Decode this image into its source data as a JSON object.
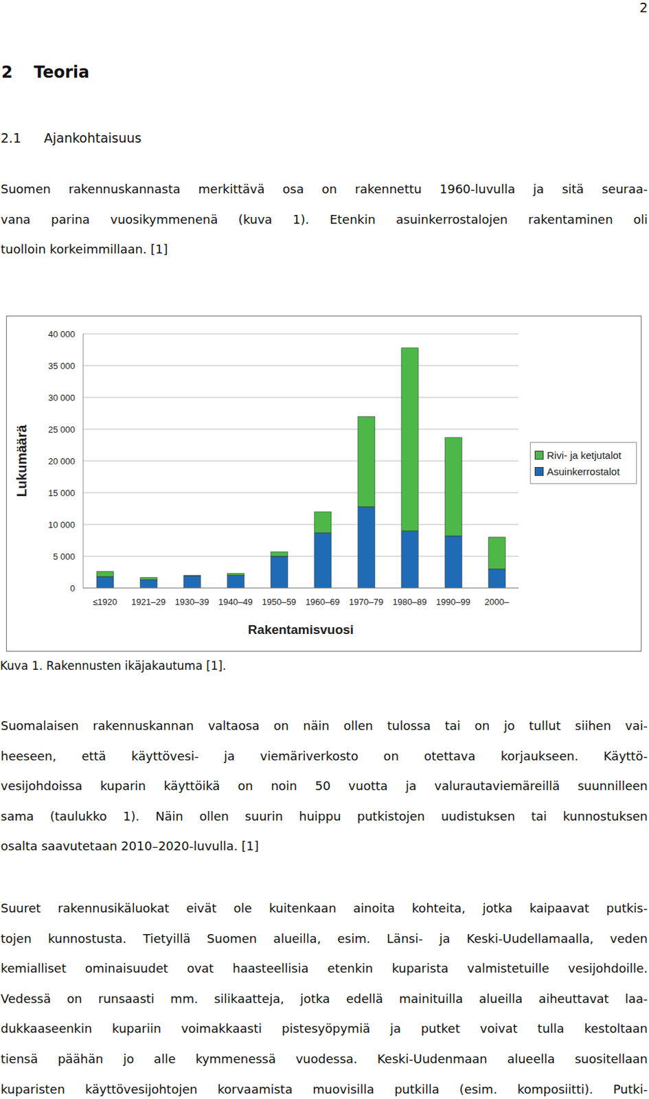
{
  "page_number": "2",
  "heading": {
    "number": "2",
    "title": "Teoria"
  },
  "subheading": {
    "number": "2.1",
    "title": "Ajankohtaisuus"
  },
  "paragraphs_before": [
    [
      "Suomen rakennuskannasta merkittävä osa on rakennettu 1960-luvulla ja sitä seuraa-",
      "vana parina vuosikymmenenä (kuva 1). Etenkin asuinkerrostalojen rakentaminen oli",
      "tuolloin korkeimmillaan. [1]"
    ]
  ],
  "chart_data": {
    "type": "bar",
    "stacked": true,
    "categories": [
      "≤1920",
      "1921–29",
      "1930–39",
      "1940–49",
      "1950–59",
      "1960–69",
      "1970–79",
      "1980–89",
      "1990–99",
      "2000–"
    ],
    "series": [
      {
        "name": "Asuinkerrostalot",
        "color": "#1f6bb5",
        "values": [
          1800,
          1300,
          1900,
          2000,
          5000,
          8700,
          12800,
          9000,
          8200,
          3000
        ]
      },
      {
        "name": "Rivi- ja ketjutalot",
        "color": "#4db848",
        "values": [
          800,
          350,
          100,
          300,
          700,
          3300,
          14200,
          28800,
          15500,
          5000
        ]
      }
    ],
    "x_label": "Rakentamisvuosi",
    "y_label": "Lukumäärä",
    "ylim": [
      0,
      40000
    ],
    "yticks": [
      0,
      {
        "value": 5000,
        "label": "5 000"
      },
      {
        "value": 10000,
        "label": "10 000"
      },
      {
        "value": 15000,
        "label": "15 000"
      },
      {
        "value": 20000,
        "label": "20 000"
      },
      {
        "value": 25000,
        "label": "25 000"
      },
      {
        "value": 30000,
        "label": "30 000"
      },
      {
        "value": 35000,
        "label": "35 000"
      },
      {
        "value": 40000,
        "label": "40 000"
      }
    ],
    "grid": true,
    "legend": "right"
  },
  "caption": "Kuva 1. Rakennusten ikäjakautuma [1].",
  "paragraphs_after": [
    [
      "Suomalaisen rakennuskannan valtaosa on näin ollen tulossa tai on jo tullut siihen vai-",
      "heeseen, että käyttövesi- ja viemäriverkosto on otettava korjaukseen. Käyttö-",
      "vesijohdoissa kuparin käyttöikä on noin 50 vuotta ja valurautaviemäreillä suunnilleen",
      "sama (taulukko 1). Näin ollen suurin huippu putkistojen uudistuksen tai kunnostuksen",
      "osalta saavutetaan 2010–2020-luvulla. [1]"
    ],
    [
      "Suuret rakennusikäluokat eivät ole kuitenkaan ainoita kohteita, jotka kaipaavat putkis-",
      "tojen kunnostusta. Tietyillä Suomen alueilla, esim. Länsi- ja Keski-Uudellamaalla, veden",
      "kemialliset ominaisuudet ovat haasteellisia etenkin kuparista valmistetuille vesijohdoille.",
      "Vedessä on runsaasti mm. silikaatteja, jotka edellä mainituilla alueilla aiheuttavat laa-",
      "dukkaaseenkin kupariin voimakkaasti pistesyöpymiä ja putket voivat tulla kestoltaan",
      "tiensä päähän jo alle kymmenessä vuodessa. Keski-Uudenmaan alueella suositellaan",
      "kuparisten käyttövesijohtojen korvaamista muovisilla putkilla (esim. komposiitti). Putki-"
    ]
  ]
}
